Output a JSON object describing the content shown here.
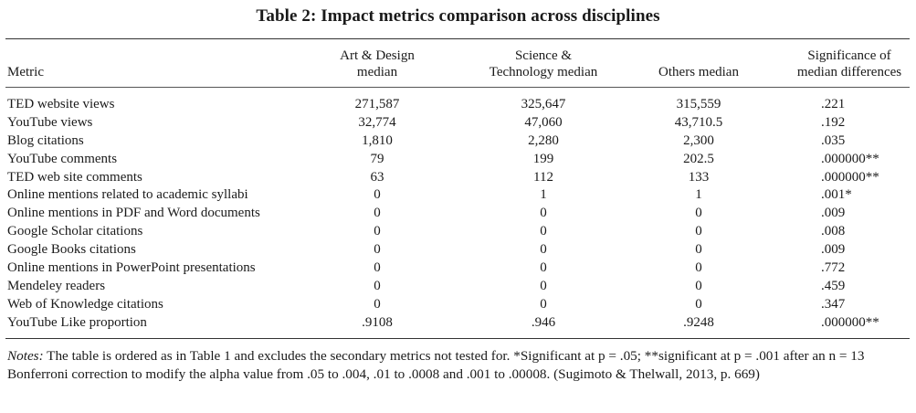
{
  "title": "Table 2: Impact metrics comparison across disciplines",
  "columns": {
    "metric": "Metric",
    "c1": [
      "Art & Design",
      "median"
    ],
    "c2": [
      "Science &",
      "Technology median"
    ],
    "c3": "Others median",
    "c4": [
      "Significance of",
      "median differences"
    ]
  },
  "rows": [
    {
      "metric": "TED website views",
      "v1": "271,587",
      "v2": "325,647",
      "v3": "315,559",
      "sig": ".221"
    },
    {
      "metric": "YouTube views",
      "v1": "32,774",
      "v2": "47,060",
      "v3": "43,710.5",
      "sig": ".192"
    },
    {
      "metric": "Blog citations",
      "v1": "1,810",
      "v2": "2,280",
      "v3": "2,300",
      "sig": ".035"
    },
    {
      "metric": "YouTube comments",
      "v1": "79",
      "v2": "199",
      "v3": "202.5",
      "sig": ".000000**"
    },
    {
      "metric": "TED web site comments",
      "v1": "63",
      "v2": "112",
      "v3": "133",
      "sig": ".000000**"
    },
    {
      "metric": "Online mentions related to academic syllabi",
      "v1": "0",
      "v2": "1",
      "v3": "1",
      "sig": ".001*"
    },
    {
      "metric": "Online mentions in PDF and Word documents",
      "v1": "0",
      "v2": "0",
      "v3": "0",
      "sig": ".009"
    },
    {
      "metric": "Google Scholar citations",
      "v1": "0",
      "v2": "0",
      "v3": "0",
      "sig": ".008"
    },
    {
      "metric": "Google Books citations",
      "v1": "0",
      "v2": "0",
      "v3": "0",
      "sig": ".009"
    },
    {
      "metric": "Online mentions in PowerPoint presentations",
      "v1": "0",
      "v2": "0",
      "v3": "0",
      "sig": ".772"
    },
    {
      "metric": "Mendeley readers",
      "v1": "0",
      "v2": "0",
      "v3": "0",
      "sig": ".459"
    },
    {
      "metric": "Web of Knowledge citations",
      "v1": "0",
      "v2": "0",
      "v3": "0",
      "sig": ".347"
    },
    {
      "metric": "YouTube Like proportion",
      "v1": ".9108",
      "v2": ".946",
      "v3": ".9248",
      "sig": ".000000**"
    }
  ],
  "notes": {
    "label": "Notes:",
    "text": " The table is ordered as in Table 1 and excludes the secondary metrics not tested for. *Significant at p = .05; **significant at p = .001 after an n = 13 Bonferroni correction to modify the alpha value from .05 to .004, .01 to .0008 and .001 to .00008. (Sugimoto & Thelwall, 2013, p. 669)"
  }
}
